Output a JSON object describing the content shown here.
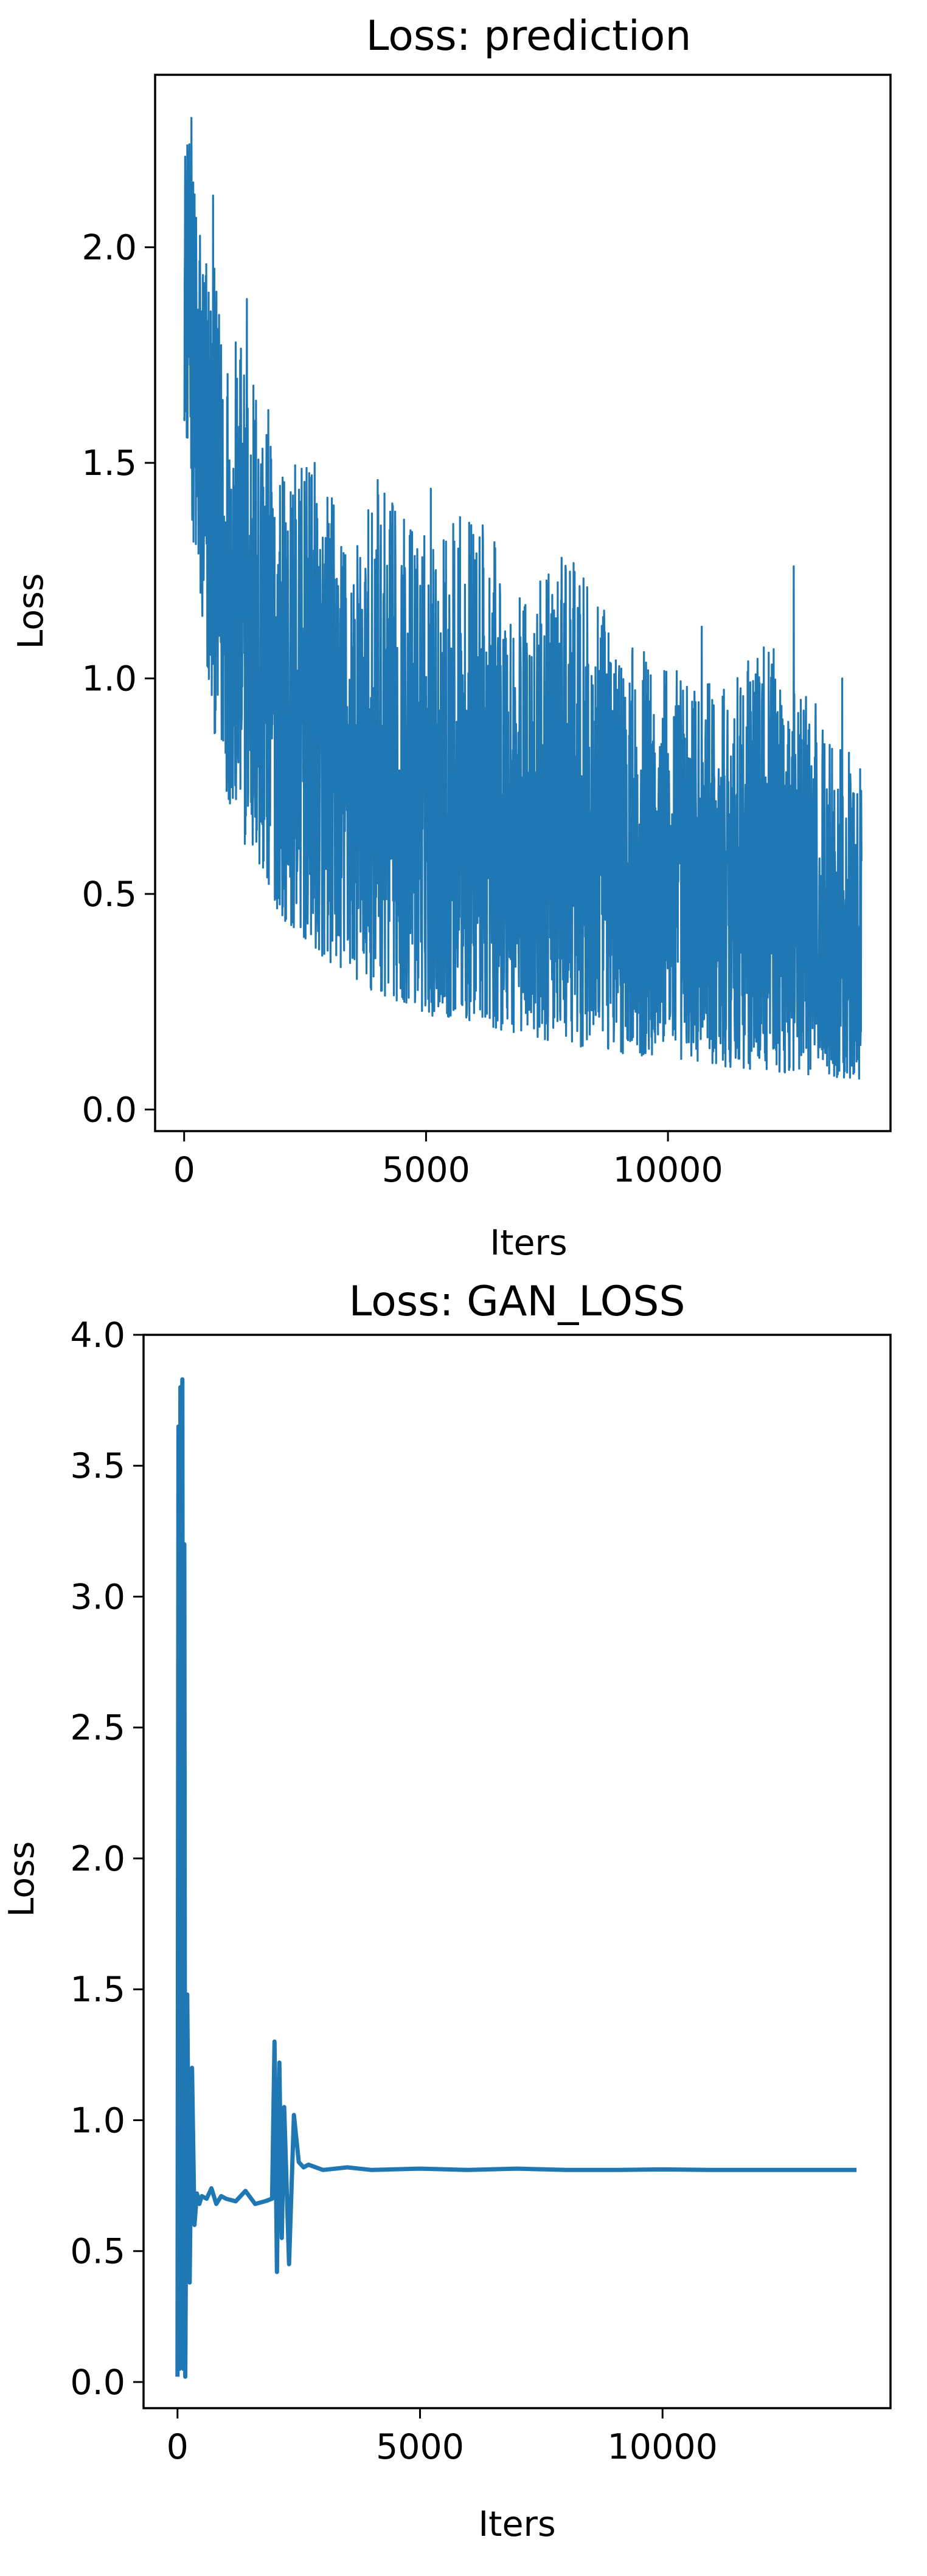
{
  "chart_data": [
    {
      "type": "line",
      "title": "Loss: prediction",
      "xlabel": "Iters",
      "ylabel": "Loss",
      "xlim": [
        -600,
        14600
      ],
      "ylim": [
        -0.05,
        2.4
      ],
      "xticks": [
        0,
        5000,
        10000
      ],
      "xtick_labels": [
        "0",
        "5000",
        "10000"
      ],
      "yticks": [
        0.0,
        0.5,
        1.0,
        1.5,
        2.0
      ],
      "ytick_labels": [
        "0.0",
        "0.5",
        "1.0",
        "1.5",
        "2.0"
      ],
      "grid": false,
      "color": "#1f77b4",
      "series": [
        {
          "x": [
            0,
            100,
            250,
            500,
            750,
            1000,
            1500,
            2000,
            2500,
            3000,
            3500,
            4000,
            5000,
            6000,
            7000,
            8000,
            9000,
            10000,
            11000,
            12000,
            13000,
            14000
          ],
          "upper": [
            2.3,
            2.25,
            2.15,
            2.05,
            1.85,
            1.8,
            1.75,
            1.5,
            1.5,
            1.45,
            1.3,
            1.45,
            1.35,
            1.4,
            1.2,
            1.28,
            1.1,
            1.05,
            0.98,
            1.1,
            0.95,
            0.8
          ],
          "lower": [
            1.6,
            1.5,
            1.2,
            0.95,
            0.8,
            0.68,
            0.55,
            0.45,
            0.38,
            0.34,
            0.3,
            0.27,
            0.22,
            0.2,
            0.17,
            0.15,
            0.13,
            0.12,
            0.1,
            0.09,
            0.08,
            0.07
          ],
          "spikes": [
            [
              150,
              2.3
            ],
            [
              600,
              2.12
            ],
            [
              1300,
              1.88
            ],
            [
              2700,
              1.5
            ],
            [
              4000,
              1.46
            ],
            [
              5100,
              1.44
            ],
            [
              7800,
              1.28
            ],
            [
              10700,
              1.12
            ],
            [
              12600,
              1.26
            ],
            [
              13600,
              1.0
            ]
          ]
        }
      ]
    },
    {
      "type": "line",
      "title": "Loss: GAN_LOSS",
      "xlabel": "Iters",
      "ylabel": "Loss",
      "xlim": [
        -700,
        14700
      ],
      "ylim": [
        -0.1,
        4.0
      ],
      "xticks": [
        0,
        5000,
        10000
      ],
      "xtick_labels": [
        "0",
        "5000",
        "10000"
      ],
      "yticks": [
        0.0,
        0.5,
        1.0,
        1.5,
        2.0,
        2.5,
        3.0,
        3.5,
        4.0
      ],
      "ytick_labels": [
        "0.0",
        "0.5",
        "1.0",
        "1.5",
        "2.0",
        "2.5",
        "3.0",
        "3.5",
        "4.0"
      ],
      "grid": false,
      "color": "#1f77b4",
      "series": [
        {
          "x": [
            0,
            20,
            40,
            60,
            80,
            100,
            120,
            140,
            160,
            200,
            250,
            300,
            350,
            400,
            450,
            500,
            600,
            700,
            800,
            900,
            1000,
            1200,
            1400,
            1600,
            1800,
            1950,
            2000,
            2050,
            2100,
            2150,
            2200,
            2300,
            2400,
            2500,
            2600,
            2700,
            3000,
            3500,
            4000,
            5000,
            6000,
            7000,
            8000,
            9000,
            10000,
            11000,
            12000,
            13000,
            14000
          ],
          "y": [
            0.02,
            3.65,
            0.05,
            3.8,
            0.1,
            3.83,
            0.05,
            3.2,
            0.02,
            1.48,
            0.38,
            1.2,
            0.6,
            0.72,
            0.68,
            0.71,
            0.7,
            0.74,
            0.68,
            0.71,
            0.7,
            0.69,
            0.73,
            0.68,
            0.69,
            0.7,
            1.3,
            0.42,
            1.22,
            0.55,
            1.05,
            0.45,
            1.02,
            0.84,
            0.82,
            0.83,
            0.81,
            0.82,
            0.81,
            0.815,
            0.81,
            0.815,
            0.81,
            0.81,
            0.812,
            0.81,
            0.81,
            0.81,
            0.81
          ]
        }
      ]
    }
  ]
}
